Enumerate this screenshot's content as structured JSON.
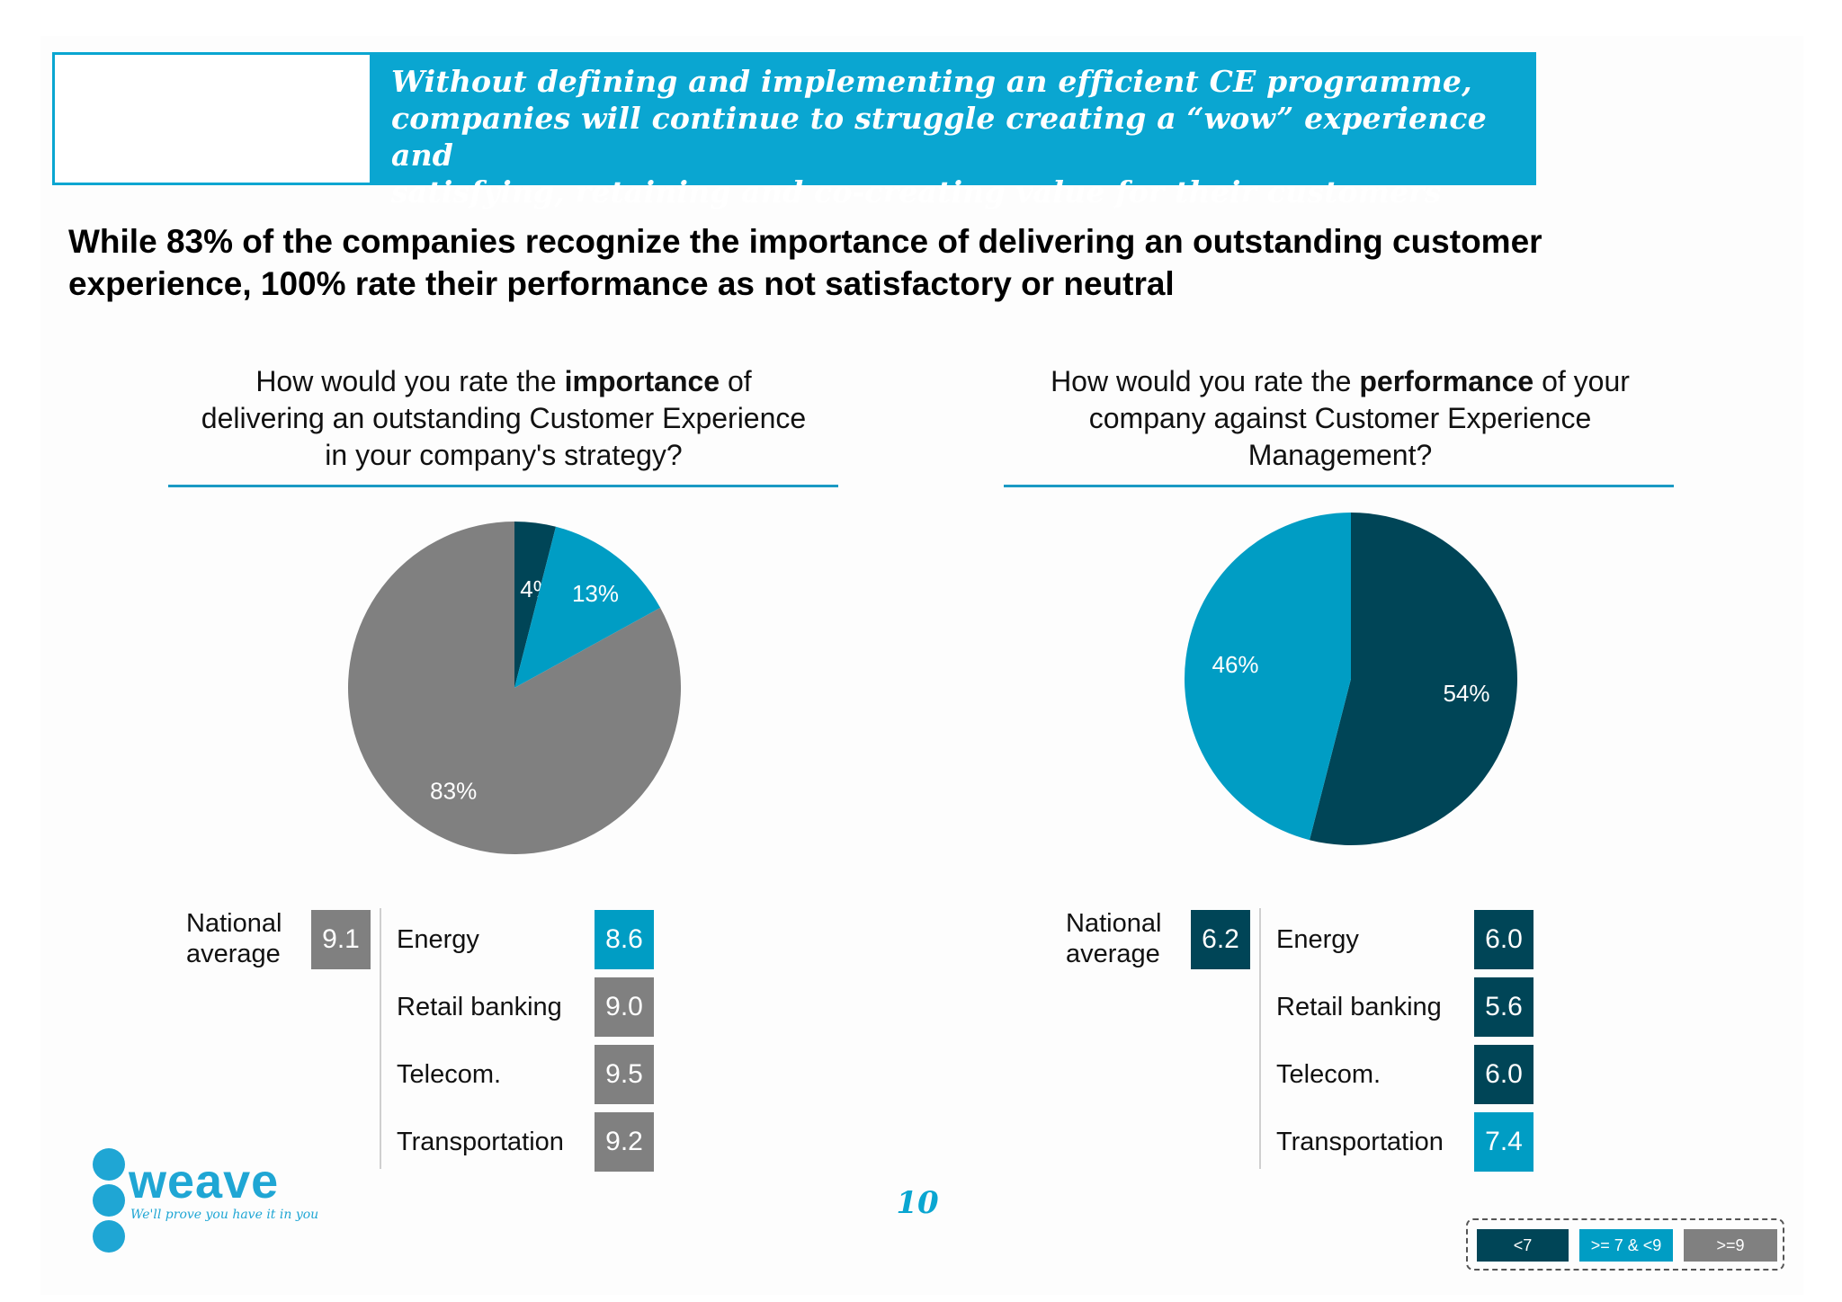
{
  "banner": {
    "lines": [
      "Without defining and implementing an efficient CE  programme,",
      "companies will continue to struggle creating a “wow” experience and",
      "satisfying, retaining and co-creating value for their customers"
    ]
  },
  "headline": {
    "line1": "While 83% of the companies recognize the importance of delivering an outstanding customer",
    "line2": "experience, 100% rate their performance as not satisfactory or neutral"
  },
  "colors": {
    "dark": "#004557",
    "mid": "#009dc4",
    "grey": "#808080",
    "accent": "#0aa6d1"
  },
  "left_panel": {
    "question": {
      "pre": "How would you rate the ",
      "bold": "importance",
      "post": " of",
      "line2": "delivering an outstanding Customer Experience",
      "line3": "in your company's strategy?"
    },
    "national_label": [
      "National",
      "average"
    ],
    "national_value": "9.1",
    "national_color": "grey",
    "segments": [
      {
        "label": "Energy",
        "value": "8.6",
        "color": "mid"
      },
      {
        "label": "Retail banking",
        "value": "9.0",
        "color": "grey"
      },
      {
        "label": "Telecom.",
        "value": "9.5",
        "color": "grey"
      },
      {
        "label": "Transportation",
        "value": "9.2",
        "color": "grey"
      }
    ]
  },
  "right_panel": {
    "question": {
      "pre": "How would you rate the ",
      "bold": "performance",
      "post": " of your",
      "line2": "company against Customer Experience",
      "line3": "Management?"
    },
    "national_label": [
      "National",
      "average"
    ],
    "national_value": "6.2",
    "national_color": "dark",
    "segments": [
      {
        "label": "Energy",
        "value": "6.0",
        "color": "dark"
      },
      {
        "label": "Retail banking",
        "value": "5.6",
        "color": "dark"
      },
      {
        "label": "Telecom.",
        "value": "6.0",
        "color": "dark"
      },
      {
        "label": "Transportation",
        "value": "7.4",
        "color": "mid"
      }
    ]
  },
  "chart_data": [
    {
      "type": "pie",
      "slices": [
        {
          "label": "4%",
          "value": 4,
          "color": "#004557"
        },
        {
          "label": "13%",
          "value": 13,
          "color": "#009dc4"
        },
        {
          "label": "83%",
          "value": 83,
          "color": "#808080"
        }
      ]
    },
    {
      "type": "pie",
      "slices": [
        {
          "label": "54%",
          "value": 54,
          "color": "#004557"
        },
        {
          "label": "46%",
          "value": 46,
          "color": "#009dc4"
        }
      ]
    }
  ],
  "legend": [
    {
      "label": "<7",
      "color": "#004557"
    },
    {
      "label": ">= 7 & <9",
      "color": "#009dc4"
    },
    {
      "label": ">=9",
      "color": "#808080"
    }
  ],
  "logo": {
    "word": "weave",
    "tagline": "We'll prove you have it in you"
  },
  "page_number": "10"
}
